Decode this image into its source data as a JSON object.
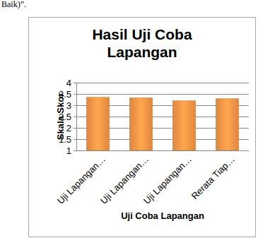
{
  "chart_data": {
    "type": "bar",
    "title": "Hasil Uji Coba Lapangan",
    "annotations": [
      "Baik)”."
    ],
    "x_label": "Uji Coba Lapangan",
    "y_label": "Skala Skor",
    "categories": [
      "Uji Lapangan…",
      "Uji Lapangan…",
      "Uji Lapangan…",
      "Rerata Tiap…"
    ],
    "values": [
      3.35,
      3.33,
      3.2,
      3.29
    ],
    "color": "#f79646",
    "ylim": [
      1,
      4
    ],
    "yticks": [
      1,
      1.5,
      2,
      2.5,
      3,
      3.5,
      4
    ],
    "grid": true
  }
}
